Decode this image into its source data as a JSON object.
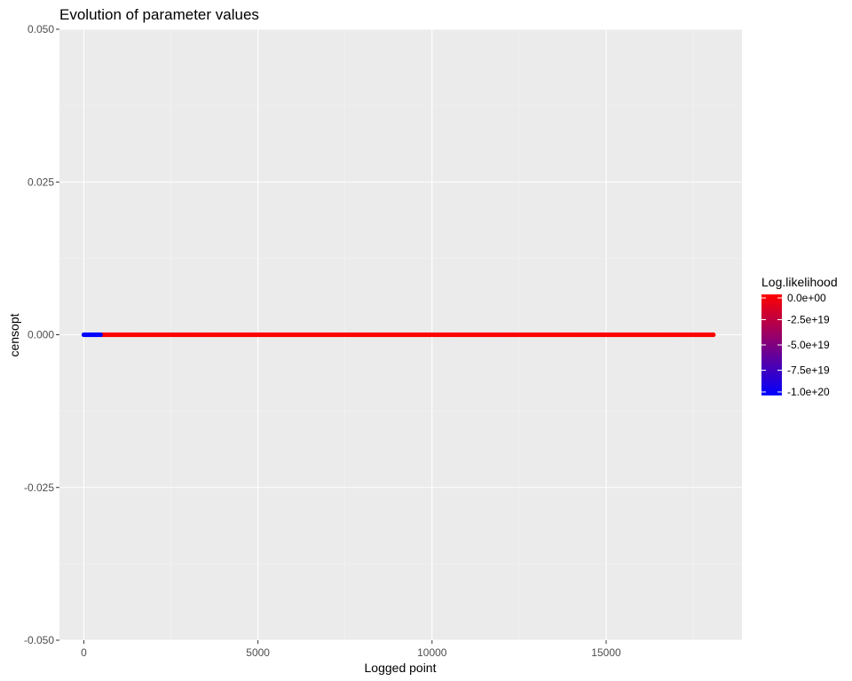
{
  "chart_data": {
    "type": "scatter",
    "title": "Evolution of parameter values",
    "xlabel": "Logged point",
    "ylabel": "censopt",
    "xlim": [
      -700,
      18900
    ],
    "ylim": [
      -0.05,
      0.05
    ],
    "x_ticks": [
      0,
      5000,
      10000,
      15000
    ],
    "x_tick_labels": [
      "0",
      "5000",
      "10000",
      "15000"
    ],
    "y_ticks": [
      -0.05,
      -0.025,
      0.0,
      0.025,
      0.05
    ],
    "y_tick_labels": [
      "-0.050",
      "-0.025",
      "0.000",
      "0.025",
      "0.050"
    ],
    "grid": true,
    "legend": {
      "title": "Log.likelihood",
      "placement": "right",
      "labels": [
        "0.0e+00",
        "-2.5e+19",
        "-5.0e+19",
        "-7.5e+19",
        "-1.0e+20"
      ],
      "values": [
        0,
        -2.5e+19,
        -5e+19,
        -7.5e+19,
        -1e+20
      ],
      "range": [
        -1e+20,
        0
      ],
      "color_low": "#0000ff",
      "color_high": "#ff0000"
    },
    "series": [
      {
        "x_range": [
          0,
          18100
        ],
        "y": 0.0,
        "note_colors": "points near x < 500 have low log-likelihood (blue); remaining points have log-likelihood near 0 (red)",
        "low_points_x": [
          0,
          40,
          80,
          120,
          160,
          200,
          240,
          280,
          320,
          360,
          400,
          440,
          480
        ],
        "low_points_value": -1e+20,
        "high_value": 0
      }
    ]
  },
  "colors": {
    "panel_background": "#ebebeb",
    "grid_major": "#ffffff",
    "grid_minor": "#f5f5f5"
  }
}
